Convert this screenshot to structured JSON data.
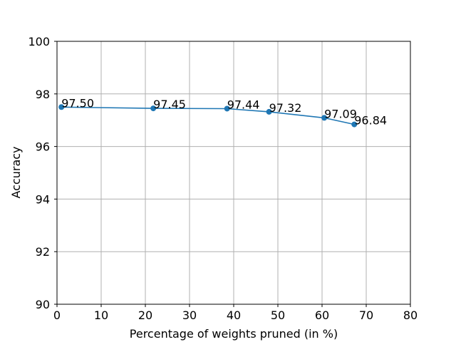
{
  "chart_data": {
    "type": "line",
    "xlabel": "Percentage of weights pruned (in %)",
    "ylabel": "Accuracy",
    "xlim": [
      0,
      80
    ],
    "ylim": [
      90,
      100
    ],
    "xticks": [
      0,
      10,
      20,
      30,
      40,
      50,
      60,
      70,
      80
    ],
    "yticks": [
      90,
      92,
      94,
      96,
      98,
      100
    ],
    "grid": true,
    "series": [
      {
        "color": "#1f77b4",
        "marker": "circle",
        "x": [
          1.0,
          21.8,
          38.5,
          48.0,
          60.5,
          67.3
        ],
        "y": [
          97.5,
          97.45,
          97.44,
          97.32,
          97.09,
          96.84
        ],
        "labels": [
          "97.50",
          "97.45",
          "97.44",
          "97.32",
          "97.09",
          "96.84"
        ]
      }
    ]
  }
}
